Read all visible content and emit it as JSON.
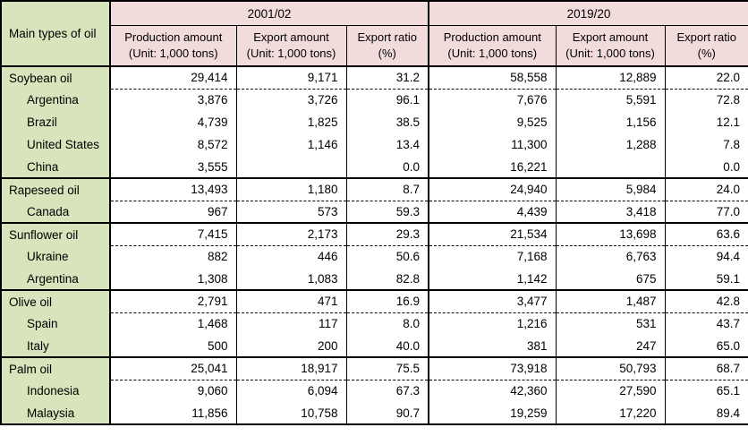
{
  "chart_data": {
    "type": "table",
    "corner_header": "Main types of oil",
    "year_groups": [
      "2001/02",
      "2019/20"
    ],
    "sub_headers": [
      {
        "title": "Production amount",
        "unit": "(Unit: 1,000 tons)"
      },
      {
        "title": "Export amount",
        "unit": "(Unit: 1,000 tons)"
      },
      {
        "title": "Export ratio",
        "unit": "(%)"
      }
    ],
    "sections": [
      {
        "rows": [
          {
            "label": "Soybean oil",
            "indent": false,
            "values": [
              "29,414",
              "9,171",
              "31.2",
              "58,558",
              "12,889",
              "22.0"
            ]
          },
          {
            "label": "Argentina",
            "indent": true,
            "values": [
              "3,876",
              "3,726",
              "96.1",
              "7,676",
              "5,591",
              "72.8"
            ]
          },
          {
            "label": "Brazil",
            "indent": true,
            "values": [
              "4,739",
              "1,825",
              "38.5",
              "9,525",
              "1,156",
              "12.1"
            ]
          },
          {
            "label": "United States",
            "indent": true,
            "values": [
              "8,572",
              "1,146",
              "13.4",
              "11,300",
              "1,288",
              "7.8"
            ]
          },
          {
            "label": "China",
            "indent": true,
            "values": [
              "3,555",
              "",
              "0.0",
              "16,221",
              "",
              "0.0"
            ]
          }
        ]
      },
      {
        "rows": [
          {
            "label": "Rapeseed oil",
            "indent": false,
            "values": [
              "13,493",
              "1,180",
              "8.7",
              "24,940",
              "5,984",
              "24.0"
            ]
          },
          {
            "label": "Canada",
            "indent": true,
            "values": [
              "967",
              "573",
              "59.3",
              "4,439",
              "3,418",
              "77.0"
            ]
          }
        ]
      },
      {
        "rows": [
          {
            "label": "Sunflower oil",
            "indent": false,
            "values": [
              "7,415",
              "2,173",
              "29.3",
              "21,534",
              "13,698",
              "63.6"
            ]
          },
          {
            "label": "Ukraine",
            "indent": true,
            "values": [
              "882",
              "446",
              "50.6",
              "7,168",
              "6,763",
              "94.4"
            ]
          },
          {
            "label": "Argentina",
            "indent": true,
            "values": [
              "1,308",
              "1,083",
              "82.8",
              "1,142",
              "675",
              "59.1"
            ]
          }
        ]
      },
      {
        "rows": [
          {
            "label": "Olive oil",
            "indent": false,
            "values": [
              "2,791",
              "471",
              "16.9",
              "3,477",
              "1,487",
              "42.8"
            ]
          },
          {
            "label": "Spain",
            "indent": true,
            "values": [
              "1,468",
              "117",
              "8.0",
              "1,216",
              "531",
              "43.7"
            ]
          },
          {
            "label": "Italy",
            "indent": true,
            "values": [
              "500",
              "200",
              "40.0",
              "381",
              "247",
              "65.0"
            ]
          }
        ]
      },
      {
        "rows": [
          {
            "label": "Palm oil",
            "indent": false,
            "values": [
              "25,041",
              "18,917",
              "75.5",
              "73,918",
              "50,793",
              "68.7"
            ]
          },
          {
            "label": "Indonesia",
            "indent": true,
            "values": [
              "9,060",
              "6,094",
              "67.3",
              "42,360",
              "27,590",
              "65.1"
            ]
          },
          {
            "label": "Malaysia",
            "indent": true,
            "values": [
              "11,856",
              "10,758",
              "90.7",
              "19,259",
              "17,220",
              "89.4"
            ]
          }
        ]
      }
    ],
    "colors": {
      "label_green": "#d8e4bc",
      "header_pink": "#f2dcdb",
      "border": "#000000"
    }
  }
}
